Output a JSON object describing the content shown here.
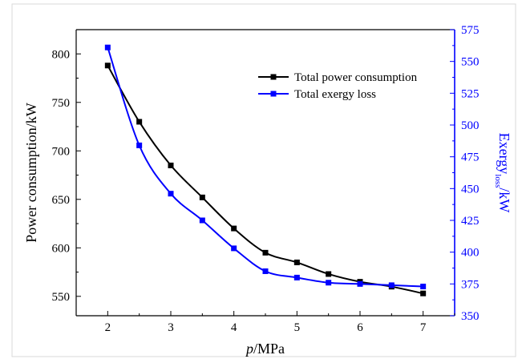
{
  "chart_data": {
    "type": "line",
    "title": "",
    "xlabel": {
      "italic": "p",
      "rest": "/MPa"
    },
    "ylabel_left": "Power consumption/kW",
    "ylabel_right": {
      "base": "Exergy",
      "subscript": "loss",
      "rest": "/kW"
    },
    "x": [
      2,
      2.5,
      3,
      3.5,
      4,
      4.5,
      5,
      5.5,
      6,
      6.5,
      7
    ],
    "xlim": [
      1.5,
      7.5
    ],
    "xticks": [
      "2",
      "3",
      "4",
      "5",
      "6",
      "7"
    ],
    "ylim_left": [
      530,
      825
    ],
    "yticks_left": [
      "550",
      "600",
      "650",
      "700",
      "750",
      "800"
    ],
    "ylim_right": [
      350,
      575
    ],
    "yticks_right": [
      "350",
      "375",
      "400",
      "425",
      "450",
      "475",
      "500",
      "525",
      "550",
      "575"
    ],
    "series": [
      {
        "name": "Total power consumption",
        "axis": "left",
        "color": "#000000",
        "marker": "square",
        "values": [
          788,
          730,
          685,
          652,
          620,
          595,
          585,
          573,
          565,
          560,
          553
        ]
      },
      {
        "name": "Total exergy loss",
        "axis": "right",
        "color": "#0000ff",
        "marker": "square",
        "values": [
          561,
          484,
          446,
          425,
          403,
          385,
          380,
          376,
          375,
          374,
          373
        ]
      }
    ],
    "legend": "top-right",
    "grid": false,
    "right_axis_color": "#0000ff"
  }
}
